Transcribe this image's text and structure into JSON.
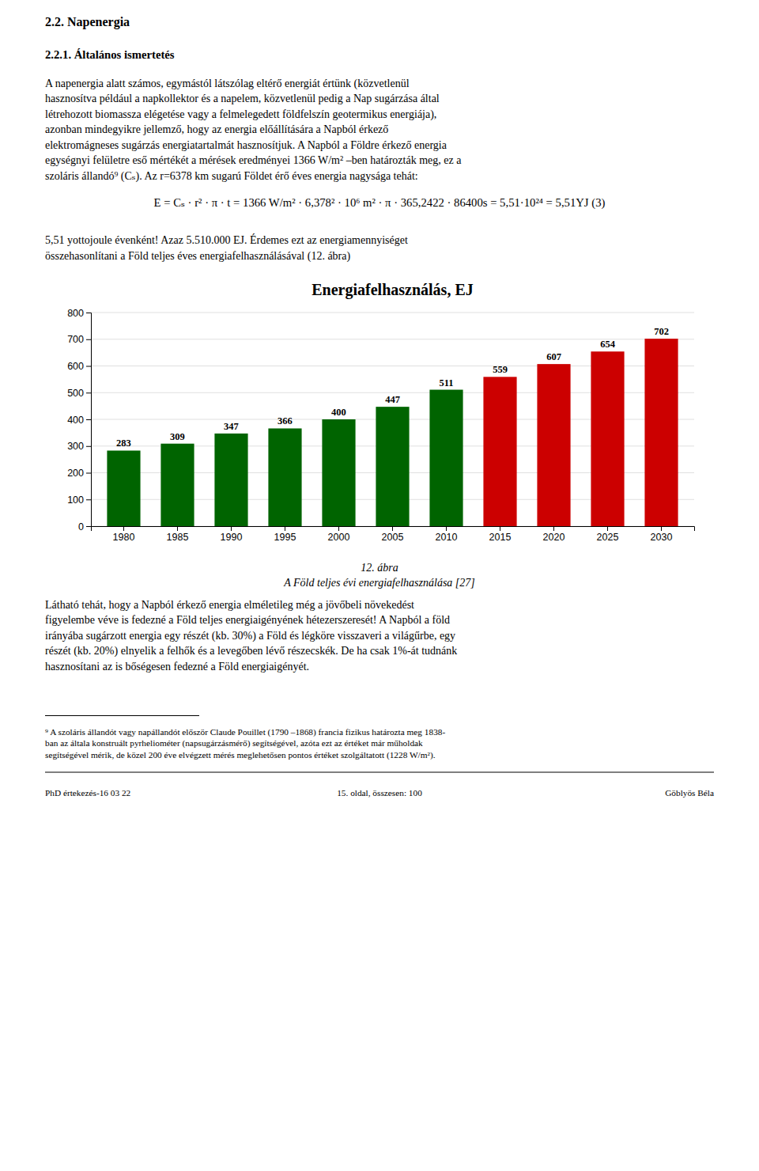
{
  "page_title": "2.2. Napenergia",
  "section_title": "2.2.1. Általános ismertetés",
  "para1_lines": [
    "A napenergia alatt számos, egymástól látszólag eltérő energiát értünk (közvetlenül",
    "hasznosítva például a napkollektor és a napelem, közvetlenül pedig a Nap sugárzása által",
    "létrehozott biomassza elégetése vagy a felmelegedett földfelszín geotermikus energiája),",
    "azonban mindegyikre jellemző, hogy az energia előállítására a Napból érkező",
    "elektromágneses sugárzás energiatartalmát hasznosítjuk. A Napból a Földre érkező energia",
    "egységnyi felületre eső mértékét a mérések eredményei 1366 W/m² –ben határozták meg, ez a",
    "szoláris állandó⁹ (Cₛ). Az r=6378 km sugarú Földet érő éves energia nagysága tehát:"
  ],
  "formula": "E = Cₛ · r² · π · t = 1366 W/m² · 6,378² · 10⁶ m² · π · 365,2422 · 86400s = 5,51·10²⁴ = 5,51YJ   (3)",
  "para2_lines": [
    "5,51 yottojoule évenként!  Azaz 5.510.000 EJ.  Érdemes ezt az energiamennyiséget",
    "összehasonlítani a Föld teljes éves energiafelhasználásával (12. ábra)"
  ],
  "chart_data": {
    "type": "bar",
    "title": "Energiafelhasználás, EJ",
    "categories": [
      1980,
      1985,
      1990,
      1995,
      2000,
      2005,
      2010,
      2015,
      2020,
      2025,
      2030
    ],
    "values": [
      283,
      309,
      347,
      366,
      400,
      447,
      511,
      559,
      607,
      654,
      702
    ],
    "colors": [
      "#006400",
      "#006400",
      "#006400",
      "#006400",
      "#006400",
      "#006400",
      "#006400",
      "#cc0000",
      "#cc0000",
      "#cc0000",
      "#cc0000"
    ],
    "ylim": [
      0,
      800
    ],
    "yticks": [
      0,
      100,
      200,
      300,
      400,
      500,
      600,
      700,
      800
    ],
    "grid": true,
    "data_labels": true
  },
  "caption_line1": "12. ábra",
  "caption_line2": "A Föld teljes évi energiafelhasználása [27]",
  "para3_lines": [
    "Látható tehát, hogy a Napból érkező energia elméletileg még a jövőbeli növekedést",
    "figyelembe véve is fedezné a Föld teljes energiaigényének hétezerszeresét! A Napból a föld",
    "irányába sugárzott energia egy részét (kb. 30%) a Föld és légköre visszaveri a világűrbe, egy",
    "részét (kb. 20%) elnyelik a felhők és a levegőben lévő részecskék. De ha csak 1%-át tudnánk",
    "hasznosítani az is bőségesen fedezné a Föld energiaigényét."
  ],
  "footnote_lines": [
    "⁹ A szoláris állandót vagy napállandót először Claude Pouillet (1790 –1868) francia fizikus határozta meg 1838-",
    "ban az általa konstruált pyrheliométer (napsugárzásmérő) segítségével, azóta ezt az értéket már műholdak",
    "segítségével mérik, de közel 200 éve elvégzett mérés meglehetősen pontos értéket szolgáltatott (1228 W/m²)."
  ],
  "footer_left": "PhD értekezés-16 03 22",
  "footer_center": "15. oldal, összesen: 100",
  "footer_right": "Göblyös Béla"
}
